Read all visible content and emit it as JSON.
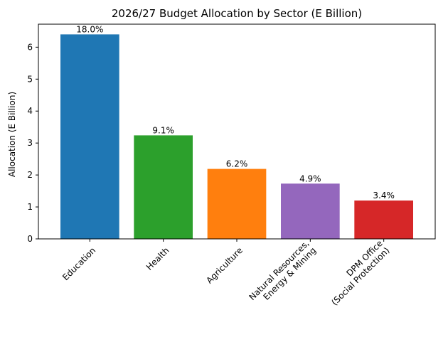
{
  "chart_data": {
    "type": "bar",
    "title": "2026/27 Budget Allocation by Sector (E Billion)",
    "xlabel": "",
    "ylabel": "Allocation (E Billion)",
    "ylim": [
      0,
      6.72
    ],
    "yticks": [
      0,
      1,
      2,
      3,
      4,
      5,
      6
    ],
    "grid": false,
    "categories": [
      "Education",
      "Health",
      "Agriculture",
      "Natural Resources,\nEnergy & Mining",
      "DPM Office\n(Social Protection)"
    ],
    "values": [
      6.4,
      3.24,
      2.19,
      1.73,
      1.2
    ],
    "data_labels": [
      "18.0%",
      "9.1%",
      "6.2%",
      "4.9%",
      "3.4%"
    ],
    "colors": [
      "#1f77b4",
      "#2ca02c",
      "#ff7f0e",
      "#9467bd",
      "#d62728"
    ]
  }
}
